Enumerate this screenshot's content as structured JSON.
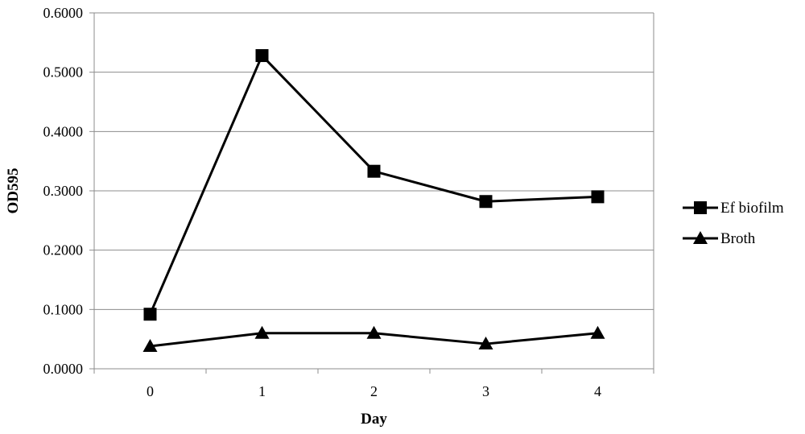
{
  "chart_data": {
    "type": "line",
    "title": "",
    "xlabel": "Day",
    "ylabel": "OD595",
    "categories": [
      "0",
      "1",
      "2",
      "3",
      "4"
    ],
    "ylim": [
      0,
      0.6
    ],
    "yticks": [
      "0.0000",
      "0.1000",
      "0.2000",
      "0.3000",
      "0.4000",
      "0.5000",
      "0.6000"
    ],
    "grid": "horizontal",
    "legend_position": "right",
    "series": [
      {
        "name": "Ef biofilm",
        "marker": "square",
        "color": "#000000",
        "values": [
          0.092,
          0.528,
          0.333,
          0.282,
          0.29
        ]
      },
      {
        "name": "Broth",
        "marker": "triangle",
        "color": "#000000",
        "values": [
          0.038,
          0.06,
          0.06,
          0.042,
          0.06
        ]
      }
    ]
  }
}
